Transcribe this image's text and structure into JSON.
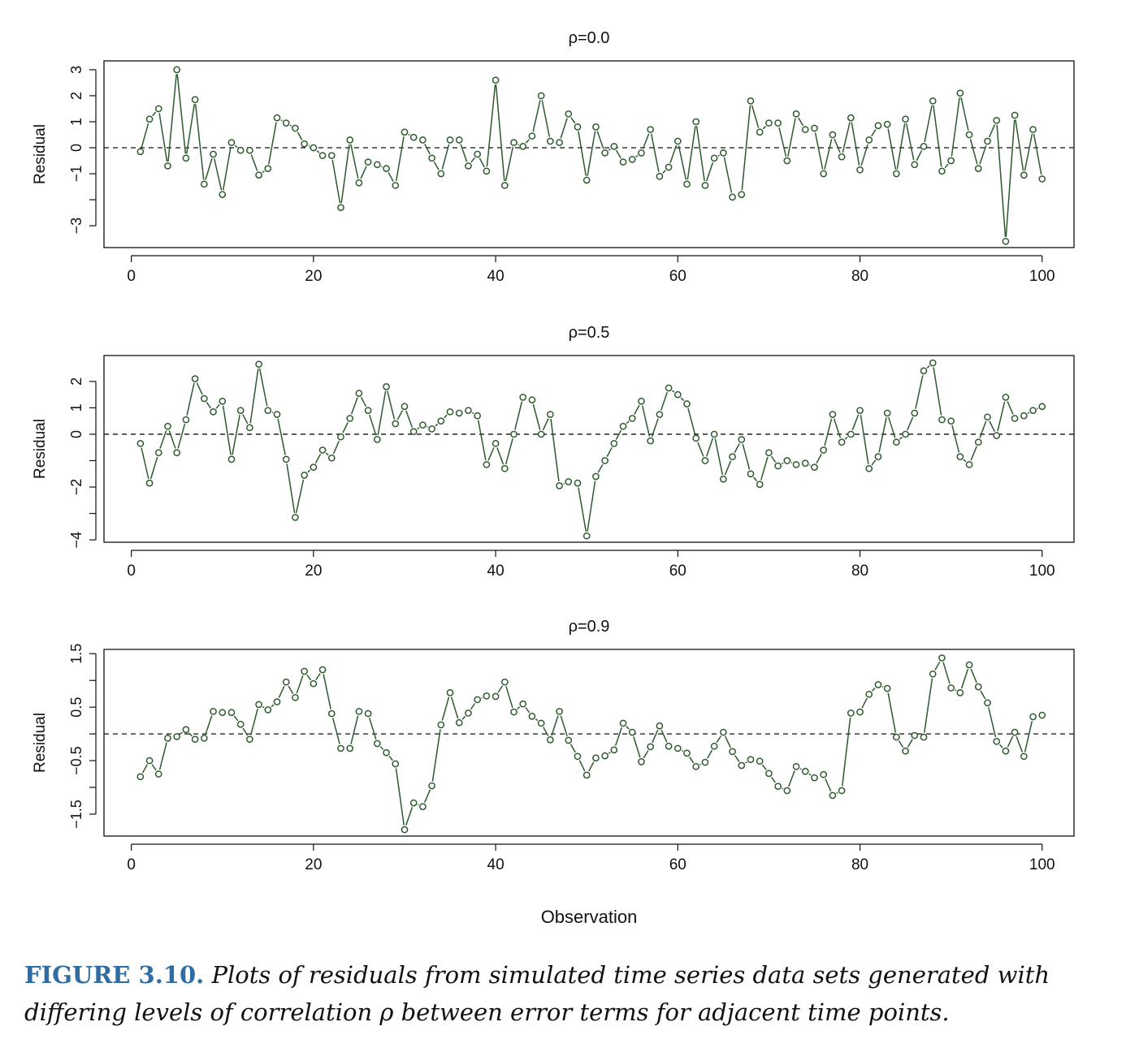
{
  "chart_data": {
    "type": "line",
    "xlabel": "Observation",
    "x_ticks": [
      "0",
      "20",
      "40",
      "60",
      "80",
      "100"
    ],
    "xlim": [
      -3,
      103.5
    ],
    "panels": [
      {
        "title": "ρ=0.0",
        "ylabel": "Residual",
        "ylim": [
          -3.84,
          3.34
        ],
        "y_ticks": [
          3,
          2,
          1,
          0,
          -1,
          -2,
          -3
        ],
        "y_tick_labels": [
          "3",
          "2",
          "1",
          "0",
          "−1",
          "",
          "−3"
        ],
        "reference_line": 0,
        "values": [
          -0.15,
          1.1,
          1.5,
          -0.7,
          3.0,
          -0.4,
          1.85,
          -1.4,
          -0.25,
          -1.8,
          0.2,
          -0.1,
          -0.1,
          -1.05,
          -0.8,
          1.15,
          0.95,
          0.75,
          0.15,
          0.0,
          -0.3,
          -0.3,
          -2.3,
          0.3,
          -1.35,
          -0.55,
          -0.65,
          -0.8,
          -1.45,
          0.6,
          0.4,
          0.3,
          -0.4,
          -1.0,
          0.3,
          0.3,
          -0.7,
          -0.25,
          -0.9,
          2.6,
          -1.45,
          0.2,
          0.05,
          0.45,
          2.0,
          0.25,
          0.2,
          1.3,
          0.8,
          -1.25,
          0.8,
          -0.2,
          0.05,
          -0.55,
          -0.45,
          -0.2,
          0.7,
          -1.1,
          -0.75,
          0.25,
          -1.4,
          1.0,
          -1.45,
          -0.4,
          -0.2,
          -1.9,
          -1.8,
          1.8,
          0.6,
          0.95,
          0.95,
          -0.5,
          1.3,
          0.7,
          0.75,
          -1.0,
          0.5,
          -0.35,
          1.15,
          -0.85,
          0.3,
          0.85,
          0.9,
          -1.0,
          1.1,
          -0.65,
          0.05,
          1.8,
          -0.9,
          -0.5,
          2.1,
          0.5,
          -0.8,
          0.25,
          1.05,
          -3.6,
          1.25,
          -1.05,
          0.7,
          -1.2
        ]
      },
      {
        "title": "ρ=0.5",
        "ylabel": "Residual",
        "ylim": [
          -4.09,
          2.98
        ],
        "y_ticks": [
          2,
          1,
          0,
          -1,
          -2,
          -3,
          -4
        ],
        "y_tick_labels": [
          "2",
          "1",
          "0",
          "",
          "−2",
          "",
          "−4"
        ],
        "reference_line": 0,
        "values": [
          -0.35,
          -1.85,
          -0.7,
          0.3,
          -0.7,
          0.55,
          2.1,
          1.35,
          0.85,
          1.25,
          -0.95,
          0.9,
          0.25,
          2.65,
          0.9,
          0.75,
          -0.95,
          -3.15,
          -1.55,
          -1.25,
          -0.6,
          -0.9,
          -0.1,
          0.6,
          1.55,
          0.9,
          -0.2,
          1.8,
          0.4,
          1.05,
          0.1,
          0.35,
          0.2,
          0.5,
          0.85,
          0.8,
          0.9,
          0.7,
          -1.15,
          -0.35,
          -1.3,
          0.0,
          1.4,
          1.3,
          0.0,
          0.75,
          -1.95,
          -1.8,
          -1.85,
          -3.85,
          -1.6,
          -1.0,
          -0.35,
          0.3,
          0.6,
          1.25,
          -0.25,
          0.75,
          1.75,
          1.5,
          1.15,
          -0.15,
          -1.0,
          0.0,
          -1.7,
          -0.85,
          -0.2,
          -1.5,
          -1.9,
          -0.7,
          -1.2,
          -1.0,
          -1.15,
          -1.1,
          -1.25,
          -0.6,
          0.75,
          -0.3,
          0.0,
          0.9,
          -1.3,
          -0.85,
          0.8,
          -0.3,
          0.0,
          0.8,
          2.4,
          2.7,
          0.55,
          0.5,
          -0.85,
          -1.15,
          -0.3,
          0.65,
          -0.05,
          1.4,
          0.6,
          0.7,
          0.9,
          1.05
        ]
      },
      {
        "title": "ρ=0.9",
        "ylabel": "Residual",
        "ylim": [
          -1.91,
          1.58
        ],
        "y_ticks": [
          1.5,
          1.0,
          0.5,
          0.0,
          -0.5,
          -1.0,
          -1.5
        ],
        "y_tick_labels": [
          "1.5",
          "",
          "0.5",
          "",
          "−0.5",
          "",
          "−1.5"
        ],
        "reference_line": 0,
        "values": [
          -0.8,
          -0.5,
          -0.75,
          -0.08,
          -0.05,
          0.08,
          -0.1,
          -0.08,
          0.42,
          0.4,
          0.4,
          0.18,
          -0.1,
          0.55,
          0.45,
          0.6,
          0.97,
          0.68,
          1.17,
          0.94,
          1.2,
          0.38,
          -0.27,
          -0.27,
          0.42,
          0.38,
          -0.18,
          -0.35,
          -0.56,
          -1.79,
          -1.29,
          -1.36,
          -0.97,
          0.17,
          0.77,
          0.21,
          0.39,
          0.64,
          0.71,
          0.7,
          0.97,
          0.41,
          0.56,
          0.33,
          0.2,
          -0.11,
          0.42,
          -0.12,
          -0.42,
          -0.77,
          -0.45,
          -0.41,
          -0.3,
          0.2,
          0.03,
          -0.52,
          -0.24,
          0.15,
          -0.23,
          -0.27,
          -0.36,
          -0.61,
          -0.53,
          -0.23,
          0.03,
          -0.33,
          -0.59,
          -0.48,
          -0.51,
          -0.74,
          -0.98,
          -1.06,
          -0.61,
          -0.7,
          -0.82,
          -0.76,
          -1.15,
          -1.06,
          0.39,
          0.41,
          0.74,
          0.92,
          0.85,
          -0.06,
          -0.32,
          -0.03,
          -0.06,
          1.12,
          1.42,
          0.86,
          0.77,
          1.29,
          0.88,
          0.58,
          -0.14,
          -0.32,
          0.03,
          -0.42,
          0.32,
          0.35
        ]
      }
    ],
    "colors": {
      "series": "#2d5a2d",
      "reference": "#111111",
      "caption_label": "#2e6da4"
    }
  },
  "caption": {
    "label": "FIGURE 3.10.",
    "text": "Plots of residuals from simulated time series data sets generated with differing levels of correlation ρ between error terms for adjacent time points."
  }
}
